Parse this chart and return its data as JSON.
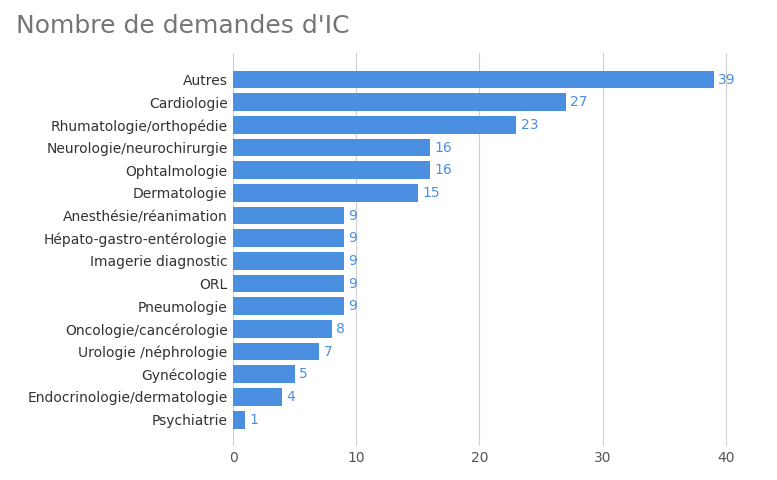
{
  "title": "Nombre de demandes d'IC",
  "categories": [
    "Psychiatrie",
    "Endocrinologie/dermatologie",
    "Gynécologie",
    "Urologie /néphrologie",
    "Oncologie/cancérologie",
    "Pneumologie",
    "ORL",
    "Imagerie diagnostic",
    "Hépato-gastro-entérologie",
    "Anesthésie/réanimation",
    "Dermatologie",
    "Ophtalmologie",
    "Neurologie/neurochirurgie",
    "Rhumatologie/orthopédie",
    "Cardiologie",
    "Autres"
  ],
  "values": [
    1,
    4,
    5,
    7,
    8,
    9,
    9,
    9,
    9,
    9,
    15,
    16,
    16,
    23,
    27,
    39
  ],
  "bar_color": "#4a8fe0",
  "label_color": "#4a8fe0",
  "title_color": "#757575",
  "background_color": "#ffffff",
  "grid_color": "#d0d0d0",
  "xlim": [
    0,
    41
  ],
  "xticks": [
    0,
    10,
    20,
    30,
    40
  ],
  "title_fontsize": 18,
  "label_fontsize": 10,
  "value_fontsize": 10,
  "tick_fontsize": 10,
  "bar_height": 0.78
}
